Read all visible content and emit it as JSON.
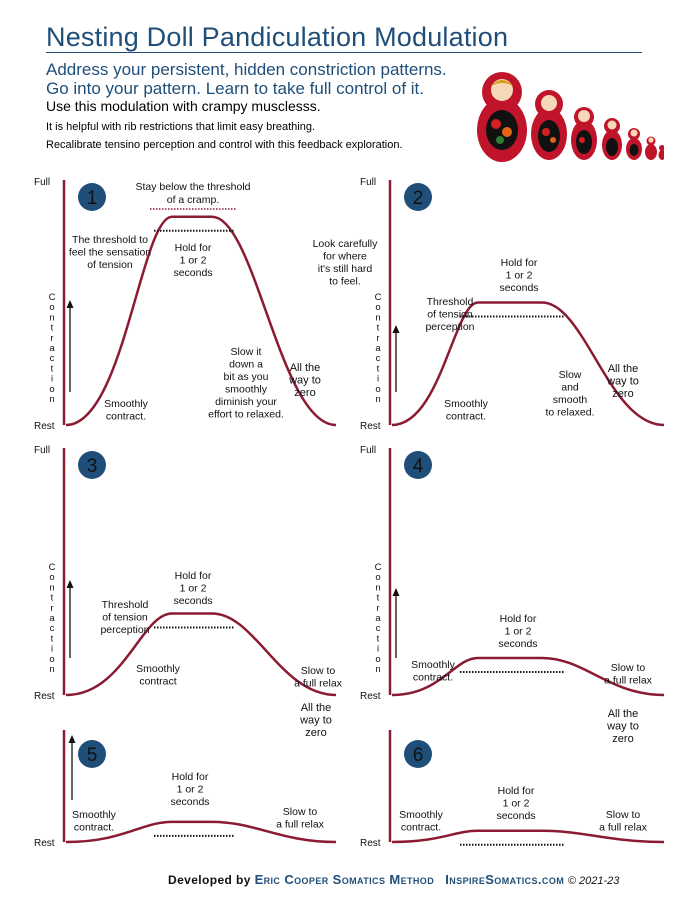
{
  "header": {
    "title": "Nesting Doll Pandiculation Modulation",
    "subtitle_line1": "Address your persistent, hidden constriction patterns.",
    "subtitle_line2": "Go into your pattern. Learn to take full control of it.",
    "bold_line": "Use this modulation with crampy musclesss.",
    "line2": "It is helpful with rib restrictions that limit easy breathing.",
    "line3": "Recalibrate tensino perception and control with this feedback exploration."
  },
  "axis": {
    "full": "Full",
    "rest": "Rest",
    "vertical_label": "Contraction"
  },
  "colors": {
    "curve": "#8b1a33",
    "badge": "#1f4e79",
    "title": "#1f4e79"
  },
  "panels": [
    {
      "num": "1",
      "peak_fraction": 0.85,
      "notes": {
        "top": [
          "Stay below the threshold",
          "of a cramp."
        ],
        "threshold": [
          "The threshold to",
          "feel the sensation",
          "of tension"
        ],
        "hold": [
          "Hold for",
          "1 or 2",
          "seconds"
        ],
        "slow": [
          "Slow it",
          "down a",
          "bit as you",
          "smoothly",
          "diminish your",
          "effort to relaxed."
        ],
        "zero": [
          "All the",
          "way to",
          "zero"
        ],
        "smooth": [
          "Smoothly",
          "contract."
        ]
      }
    },
    {
      "num": "2",
      "peak_fraction": 0.5,
      "notes": {
        "look": [
          "Look carefully",
          "for where",
          "it's still hard",
          "to feel."
        ],
        "hold": [
          "Hold for",
          "1 or 2",
          "seconds"
        ],
        "threshold": [
          "Threshold",
          "of tension",
          "perception"
        ],
        "slow": [
          "Slow",
          "and",
          "smooth",
          "to relaxed."
        ],
        "zero": [
          "All the",
          "way to",
          "zero"
        ],
        "smooth": [
          "Smoothly",
          "contract."
        ]
      }
    },
    {
      "num": "3",
      "peak_fraction": 0.33,
      "notes": {
        "hold": [
          "Hold for",
          "1 or 2",
          "seconds"
        ],
        "threshold": [
          "Threshold",
          "of tension",
          "perception"
        ],
        "smooth": [
          "Smoothly",
          "contract"
        ],
        "relax": [
          "Slow to",
          "a full relax"
        ]
      }
    },
    {
      "num": "4",
      "peak_fraction": 0.15,
      "notes": {
        "hold": [
          "Hold for",
          "1 or 2",
          "seconds"
        ],
        "smooth": [
          "Smoothly",
          "contract."
        ],
        "relax": [
          "Slow to",
          "a full relax"
        ],
        "zero": [
          "All the",
          "way to",
          "zero"
        ]
      }
    },
    {
      "num": "5",
      "peak_fraction": 0.18,
      "notes": {
        "zero": [
          "All the",
          "way to",
          "zero"
        ],
        "hold": [
          "Hold for",
          "1 or 2",
          "seconds"
        ],
        "smooth": [
          "Smoothly",
          "contract."
        ],
        "relax": [
          "Slow to",
          "a full relax"
        ]
      }
    },
    {
      "num": "6",
      "peak_fraction": 0.1,
      "notes": {
        "hold": [
          "Hold for",
          "1 or 2",
          "seconds"
        ],
        "smooth": [
          "Smoothly",
          "contract."
        ],
        "relax": [
          "Slow to",
          "a full relax"
        ]
      }
    }
  ],
  "footer": {
    "developed": "Developed by",
    "method": "Eric Cooper Somatics Method",
    "site": "InspireSomatics.com",
    "copyright": "© 2021-23"
  },
  "image": {
    "icon": "nesting-dolls-photo"
  }
}
